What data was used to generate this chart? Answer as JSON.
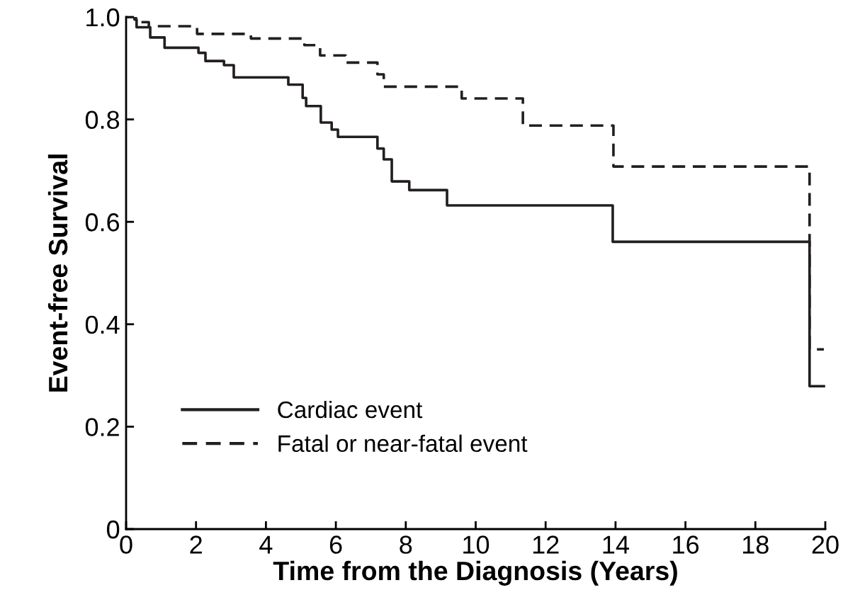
{
  "chart_data": {
    "type": "step",
    "xlabel": "Time from the Diagnosis (Years)",
    "ylabel": "Event-free Survival",
    "xlim": [
      0,
      20
    ],
    "ylim": [
      0,
      1
    ],
    "xticks": [
      0,
      2,
      4,
      6,
      8,
      10,
      12,
      14,
      16,
      18,
      20
    ],
    "yticks": [
      0,
      0.2,
      0.4,
      0.6,
      0.8,
      {
        "value": 1,
        "label": "1.0"
      }
    ],
    "grid": false,
    "legend": "bottom left",
    "series": [
      {
        "name": "Cardiac event",
        "color": "#231f20",
        "line_style": "solid",
        "x": [
          0,
          0.24,
          0.3,
          0.69,
          1.1,
          2.07,
          2.27,
          2.8,
          3.08,
          4.64,
          5.05,
          5.15,
          5.57,
          5.88,
          6.06,
          7.19,
          7.37,
          7.6,
          8.1,
          9.18,
          13.92,
          19.55,
          19.96
        ],
        "values": [
          1.0,
          0.995,
          0.98,
          0.96,
          0.94,
          0.93,
          0.914,
          0.906,
          0.882,
          0.868,
          0.842,
          0.826,
          0.794,
          0.78,
          0.766,
          0.743,
          0.722,
          0.679,
          0.662,
          0.632,
          0.561,
          0.279,
          0.279
        ]
      },
      {
        "name": "Fatal or near-fatal event",
        "color": "#231f20",
        "line_style": "dashed",
        "x": [
          0,
          0.28,
          0.65,
          2.03,
          3.57,
          5.1,
          5.55,
          6.28,
          7.19,
          7.37,
          9.6,
          11.35,
          13.94,
          19.55,
          19.96
        ],
        "values": [
          1.0,
          0.99,
          0.982,
          0.967,
          0.958,
          0.945,
          0.925,
          0.911,
          0.888,
          0.864,
          0.841,
          0.788,
          0.708,
          0.351,
          0.351
        ]
      }
    ]
  }
}
